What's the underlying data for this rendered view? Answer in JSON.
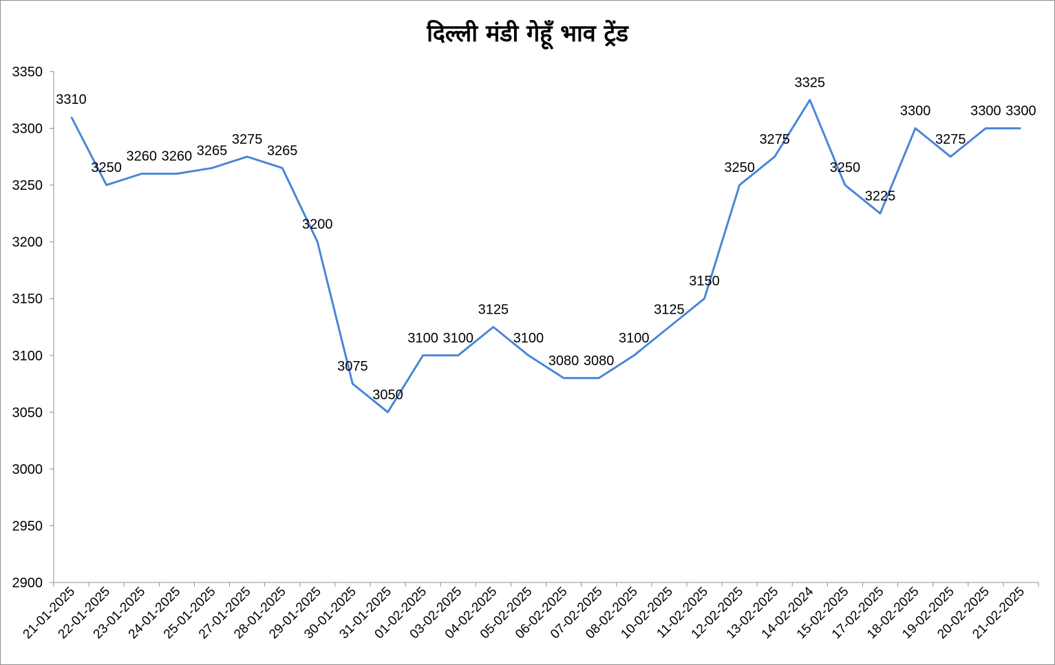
{
  "chart_data": {
    "type": "line",
    "title": "दिल्ली मंडी गेहूँ भाव ट्रेंड",
    "xlabel": "",
    "ylabel": "",
    "ylim": [
      2900,
      3350
    ],
    "yticks": [
      2900,
      2950,
      3000,
      3050,
      3100,
      3150,
      3200,
      3250,
      3300,
      3350
    ],
    "grid": false,
    "legend": "none",
    "line_color": "#4A86D8",
    "categories": [
      "21-01-2025",
      "22-01-2025",
      "23-01-2025",
      "24-01-2025",
      "25-01-2025",
      "27-01-2025",
      "28-01-2025",
      "29-01-2025",
      "30-01-2025",
      "31-01-2025",
      "01-02-2025",
      "03-02-2025",
      "04-02-2025",
      "05-02-2025",
      "06-02-2025",
      "07-02-2025",
      "08-02-2025",
      "10-02-2025",
      "11-02-2025",
      "12-02-2025",
      "13-02-2025",
      "14-02-2024",
      "15-02-2025",
      "17-02-2025",
      "18-02-2025",
      "19-02-2025",
      "20-02-2025",
      "21-02-2025"
    ],
    "series": [
      {
        "values": [
          3310,
          3250,
          3260,
          3260,
          3265,
          3275,
          3265,
          3200,
          3075,
          3050,
          3100,
          3100,
          3125,
          3100,
          3080,
          3080,
          3100,
          3125,
          3150,
          3250,
          3275,
          3325,
          3250,
          3225,
          3300,
          3275,
          3300,
          3300
        ]
      }
    ]
  }
}
